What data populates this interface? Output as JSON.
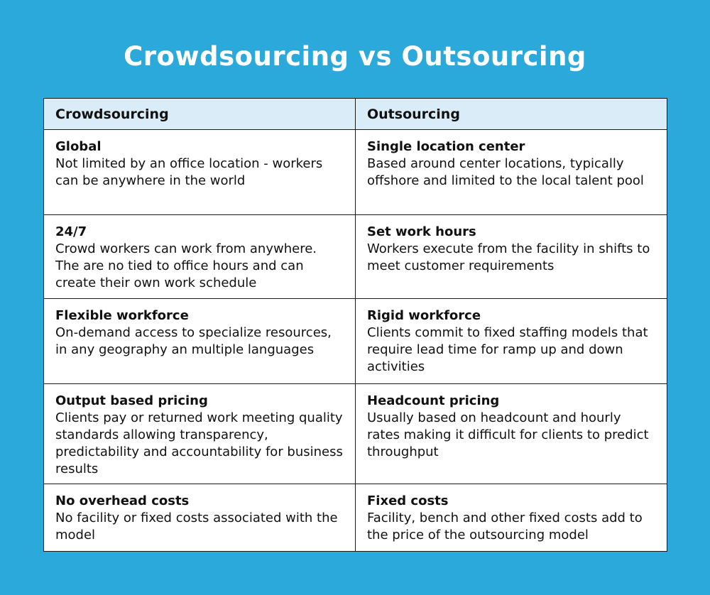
{
  "page": {
    "title": "Crowdsourcing vs Outsourcing"
  },
  "colors": {
    "background": "#2BA9DB",
    "header_bg": "#D9ECF7",
    "cell_bg": "#FFFFFF",
    "border": "#1B1B1B",
    "title_text": "#FFFFFF",
    "body_text": "#111111"
  },
  "table": {
    "headers": [
      "Crowdsourcing",
      "Outsourcing"
    ],
    "rows": [
      {
        "left": {
          "term": "Global",
          "desc": "Not limited by an office location - workers can be anywhere in the world"
        },
        "right": {
          "term": "Single location center",
          "desc": "Based around center locations, typically offshore and limited to the local talent pool"
        }
      },
      {
        "left": {
          "term": "24/7",
          "desc": "Crowd workers can work from anywhere. The are no tied to office hours and can create their own work schedule"
        },
        "right": {
          "term": "Set work hours",
          "desc": "Workers execute from the facility in shifts to meet customer requirements"
        }
      },
      {
        "left": {
          "term": "Flexible workforce",
          "desc": "On-demand access to specialize resources, in any geography an multiple languages"
        },
        "right": {
          "term": "Rigid workforce",
          "desc": "Clients commit to fixed staffing models that require lead time for ramp up and down activities"
        }
      },
      {
        "left": {
          "term": "Output based pricing",
          "desc": "Clients pay or returned work meeting quality standards allowing transparency, predictability and accountability for business results"
        },
        "right": {
          "term": "Headcount pricing",
          "desc": "Usually based on headcount and hourly rates making it difficult for clients to predict throughput"
        }
      },
      {
        "left": {
          "term": "No overhead costs",
          "desc": "No facility or fixed costs associated with the model"
        },
        "right": {
          "term": "Fixed costs",
          "desc": "Facility, bench and other fixed costs add to the price of the outsourcing model"
        }
      }
    ]
  }
}
